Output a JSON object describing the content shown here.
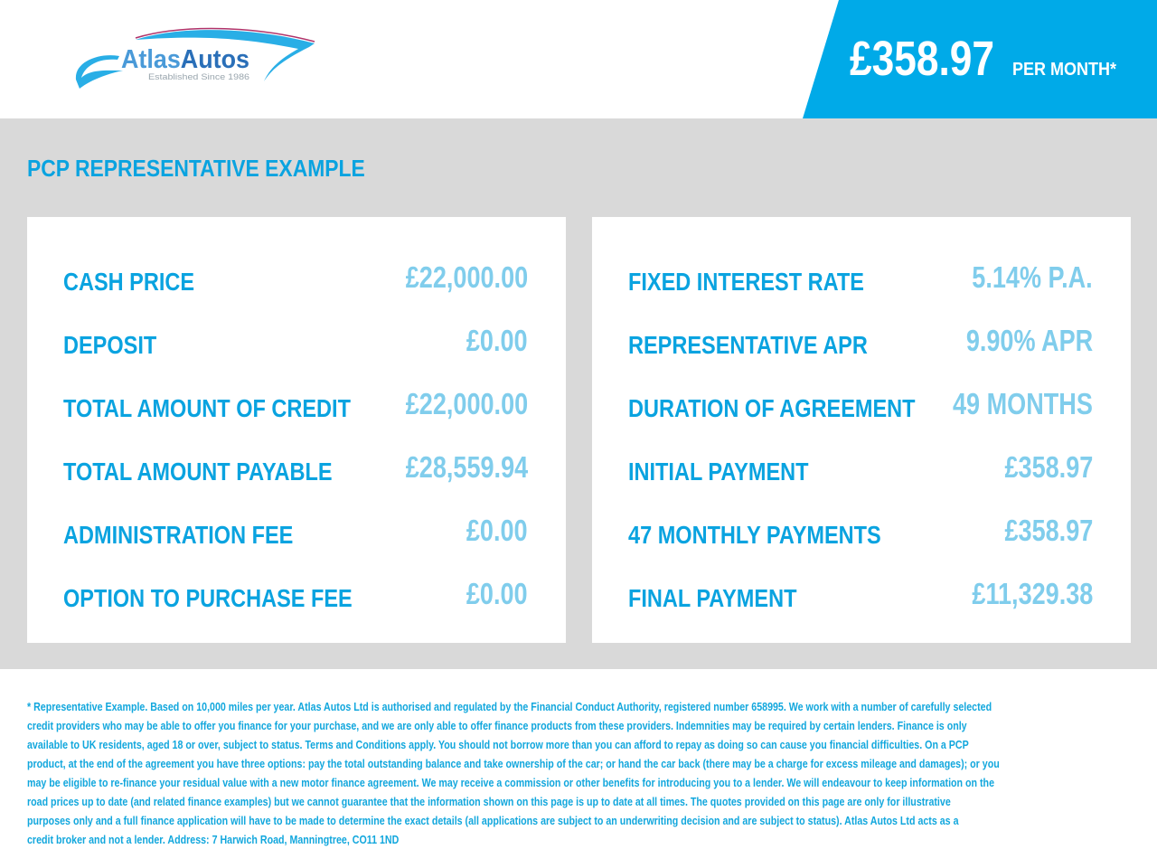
{
  "brand": {
    "name": "AtlasAutos",
    "name_part1": "Atlas",
    "name_part2": "Autos",
    "tagline": "Established Since 1986",
    "accent": "#00aae8"
  },
  "header": {
    "monthly_price": "£358.97",
    "per_month_label": "PER MONTH*"
  },
  "section_title": "PCP REPRESENTATIVE EXAMPLE",
  "left_card": [
    {
      "label": "CASH PRICE",
      "value": "£22,000.00"
    },
    {
      "label": "DEPOSIT",
      "value": "£0.00"
    },
    {
      "label": "TOTAL AMOUNT OF CREDIT",
      "value": "£22,000.00"
    },
    {
      "label": "TOTAL AMOUNT PAYABLE",
      "value": "£28,559.94"
    },
    {
      "label": "ADMINISTRATION FEE",
      "value": "£0.00"
    },
    {
      "label": "OPTION TO PURCHASE FEE",
      "value": "£0.00"
    }
  ],
  "right_card": [
    {
      "label": "FIXED INTEREST RATE",
      "value": "5.14% P.A."
    },
    {
      "label": "REPRESENTATIVE APR",
      "value": "9.90% APR"
    },
    {
      "label": "DURATION OF AGREEMENT",
      "value": "49 MONTHS"
    },
    {
      "label": "INITIAL PAYMENT",
      "value": "£358.97"
    },
    {
      "label": "47 MONTHLY PAYMENTS",
      "value": "£358.97"
    },
    {
      "label": "FINAL PAYMENT",
      "value": "£11,329.38"
    }
  ],
  "disclaimer_lines": [
    "* Representative Example. Based on 10,000 miles per year. Atlas Autos Ltd is authorised and regulated by the Financial Conduct Authority, registered number 658995. We work with a number of carefully selected",
    "credit providers who may be able to offer you finance for your purchase, and we are only able to offer finance products from these providers. Indemnities may be required by certain lenders. Finance is only",
    "available to UK residents, aged 18 or over, subject to status. Terms and Conditions apply. You should not borrow more than you can afford to repay as doing so can cause you financial difficulties. On a PCP",
    "product, at the end of the agreement you have three options: pay the total outstanding balance and take ownership of the car; or hand the car back (there may be a charge for excess mileage and damages); or you",
    "may be eligible to re-finance your residual value with a new motor finance agreement. We may receive a commission or other benefits for introducing you to a lender. We will endeavour to keep information on the",
    "road prices up to date (and related finance examples) but we cannot guarantee that the information shown on this page is up to date at all times. The quotes provided on this page are only for illustrative",
    "purposes only and a full finance application will have to be made to determine the exact details (all applications are subject to an underwriting decision and are subject to status). Atlas Autos Ltd acts as a",
    "credit broker and not a lender. Address: 7 Harwich Road, Manningtree, CO11 1ND"
  ]
}
